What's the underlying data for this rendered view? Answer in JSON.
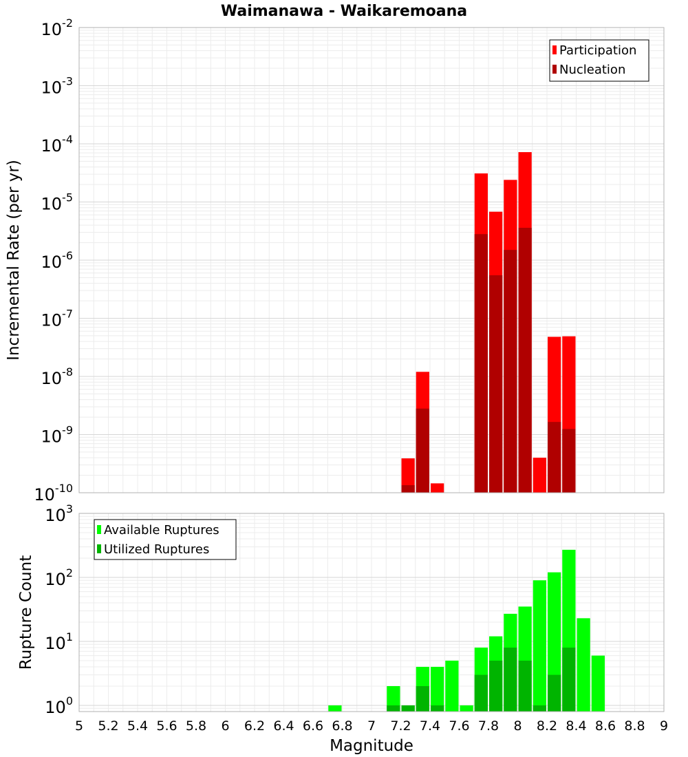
{
  "chart_data": [
    {
      "type": "bar",
      "title": "Waimanawa - Waikaremoana",
      "xlabel": "",
      "ylabel": "Incremental Rate (per yr)",
      "yscale": "log",
      "ylim": [
        1e-10,
        0.01
      ],
      "xlim": [
        5,
        9
      ],
      "ytick_exponents": [
        "-2",
        "-3",
        "-4",
        "-5",
        "-6",
        "-7",
        "-8",
        "-9",
        "-10"
      ],
      "grid": true,
      "legend_position": "top-right",
      "bin_width": 0.1,
      "series": [
        {
          "name": "Participation",
          "color": "#ff0000",
          "x": [
            7.25,
            7.35,
            7.45,
            7.75,
            7.85,
            7.95,
            8.05,
            8.15,
            8.25,
            8.35
          ],
          "values": [
            3.9e-10,
            1.2e-08,
            1.45e-10,
            3.1e-05,
            6.8e-06,
            2.4e-05,
            7.2e-05,
            4e-10,
            4.8e-08,
            4.9e-08
          ]
        },
        {
          "name": "Nucleation",
          "color": "#b00000",
          "x": [
            7.25,
            7.35,
            7.75,
            7.85,
            7.95,
            8.05,
            8.25,
            8.35
          ],
          "values": [
            1.35e-10,
            2.8e-09,
            2.8e-06,
            5.5e-07,
            1.5e-06,
            3.6e-06,
            1.65e-09,
            1.25e-09
          ]
        }
      ]
    },
    {
      "type": "bar",
      "title": "",
      "xlabel": "Magnitude",
      "ylabel": "Rupture Count",
      "yscale": "log",
      "ylim": [
        0.8,
        1000
      ],
      "xlim": [
        5,
        9
      ],
      "ytick_exponents": [
        "3",
        "2",
        "1",
        "0"
      ],
      "xticks": [
        "5",
        "5.2",
        "5.4",
        "5.6",
        "5.8",
        "6",
        "6.2",
        "6.4",
        "6.6",
        "6.8",
        "7",
        "7.2",
        "7.4",
        "7.6",
        "7.8",
        "8",
        "8.2",
        "8.4",
        "8.6",
        "8.8",
        "9"
      ],
      "grid": true,
      "legend_position": "top-left",
      "bin_width": 0.1,
      "series": [
        {
          "name": "Available Ruptures",
          "color": "#00ff00",
          "x": [
            6.75,
            7.15,
            7.25,
            7.35,
            7.45,
            7.55,
            7.65,
            7.75,
            7.85,
            7.95,
            8.05,
            8.15,
            8.25,
            8.35,
            8.45,
            8.55
          ],
          "values": [
            1,
            2,
            1,
            4,
            4,
            5,
            1,
            8,
            12,
            27,
            35,
            90,
            120,
            270,
            23,
            6
          ]
        },
        {
          "name": "Utilized Ruptures",
          "color": "#00b400",
          "x": [
            7.15,
            7.25,
            7.35,
            7.45,
            7.75,
            7.85,
            7.95,
            8.05,
            8.15,
            8.25,
            8.35
          ],
          "values": [
            1,
            1,
            2,
            1,
            3,
            5,
            8,
            5,
            1,
            3,
            8
          ]
        }
      ]
    }
  ]
}
